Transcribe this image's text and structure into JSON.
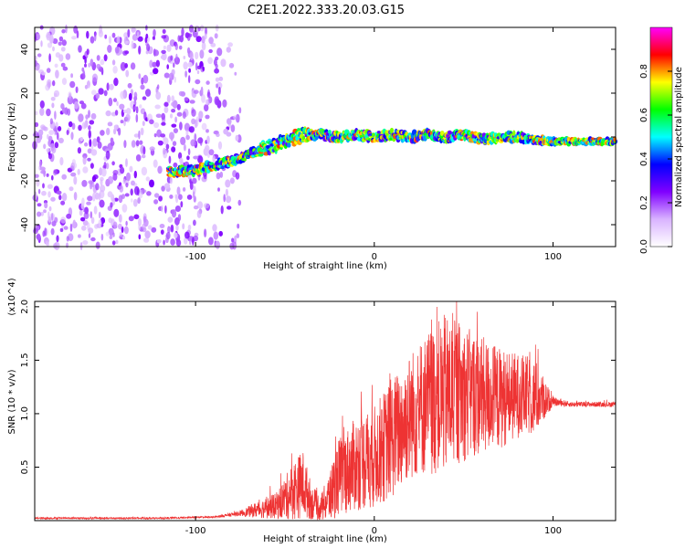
{
  "title": "C2E1.2022.333.20.03.G15",
  "chart_data": [
    {
      "type": "heatmap",
      "xlabel": "Height of straight line (km)",
      "ylabel": "Frequency (Hz)",
      "xlim": [
        -190,
        135
      ],
      "ylim": [
        -50,
        50
      ],
      "xticks": [
        -100,
        0,
        100
      ],
      "xtick_labels": [
        "-100",
        "0",
        "100"
      ],
      "yticks": [
        -40,
        -20,
        0,
        20,
        40
      ],
      "ytick_labels": [
        "-40",
        "-20",
        "0",
        "20",
        "40"
      ],
      "colorbar": {
        "label": "Normalized spectral amplitude",
        "range": [
          0,
          1
        ],
        "ticks": [
          0.0,
          0.2,
          0.4,
          0.6,
          0.8
        ],
        "tick_labels": [
          "0.0",
          "0.2",
          "0.4",
          "0.6",
          "0.8"
        ],
        "colormap": [
          "#ffffff",
          "#d9b3ff",
          "#8000ff",
          "#0000ff",
          "#00ffff",
          "#00ff00",
          "#ffff00",
          "#ff0000",
          "#ff00ff"
        ]
      },
      "ridge": {
        "x": [
          -115,
          -100,
          -90,
          -80,
          -70,
          -60,
          -50,
          -40,
          -30,
          -20,
          -10,
          0,
          10,
          20,
          30,
          40,
          50,
          60,
          70,
          80,
          90,
          100,
          110,
          120,
          135
        ],
        "y": [
          -16,
          -15,
          -13,
          -11,
          -8,
          -5,
          -2,
          1,
          1,
          0,
          1,
          0,
          1,
          0,
          1,
          0,
          1,
          -1,
          0,
          0,
          -1,
          -2,
          -2,
          -2,
          -2
        ]
      },
      "noise_region_x": [
        -190,
        -75
      ]
    },
    {
      "type": "line",
      "xlabel": "Height of straight line (km)",
      "ylabel": "SNR (10 * v/v)",
      "y_multiplier_label": "(x10^4)",
      "xlim": [
        -190,
        135
      ],
      "ylim": [
        0,
        2.05
      ],
      "xticks": [
        -100,
        0,
        100
      ],
      "xtick_labels": [
        "-100",
        "0",
        "100"
      ],
      "yticks": [
        0.5,
        1.0,
        1.5,
        2.0
      ],
      "ytick_labels": [
        "0.5",
        "1.0",
        "1.5",
        "2.0"
      ],
      "color": "#ee3333",
      "envelope": {
        "x": [
          -190,
          -120,
          -90,
          -75,
          -65,
          -55,
          -45,
          -40,
          -35,
          -30,
          -25,
          -20,
          -10,
          0,
          10,
          20,
          30,
          40,
          50,
          60,
          70,
          80,
          90,
          100,
          110,
          135
        ],
        "base": [
          0.02,
          0.02,
          0.03,
          0.06,
          0.08,
          0.1,
          0.2,
          0.25,
          0.12,
          0.08,
          0.15,
          0.3,
          0.4,
          0.45,
          0.6,
          0.8,
          0.9,
          0.95,
          1.0,
          1.0,
          1.0,
          1.05,
          1.05,
          1.1,
          1.08,
          1.08
        ],
        "amp": [
          0.01,
          0.01,
          0.01,
          0.03,
          0.1,
          0.15,
          0.35,
          0.4,
          0.2,
          0.15,
          0.3,
          0.45,
          0.55,
          0.6,
          0.7,
          0.75,
          0.85,
          0.95,
          0.8,
          0.7,
          0.6,
          0.5,
          0.45,
          0.05,
          0.03,
          0.03
        ]
      }
    }
  ]
}
